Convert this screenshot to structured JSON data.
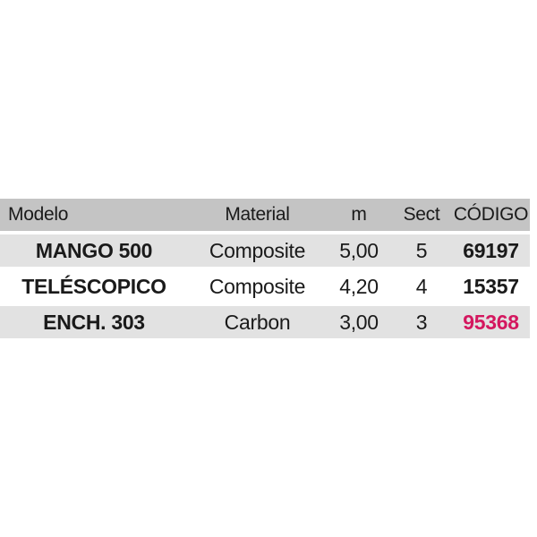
{
  "colors": {
    "header_bg": "#c4c4c4",
    "row_alt_bg": "#e2e2e2",
    "row_bg": "#ffffff",
    "text": "#1a1a1a",
    "highlight": "#d4175f",
    "page_bg": "#ffffff"
  },
  "table": {
    "columns": [
      {
        "key": "modelo",
        "label": "Modelo"
      },
      {
        "key": "material",
        "label": "Material"
      },
      {
        "key": "m",
        "label": "m"
      },
      {
        "key": "sect",
        "label": "Sect"
      },
      {
        "key": "codigo",
        "label": "CÓDIGO"
      }
    ],
    "rows": [
      {
        "modelo": "MANGO 500",
        "material": "Composite",
        "m": "5,00",
        "sect": "5",
        "codigo": "69197",
        "codigo_highlighted": false
      },
      {
        "modelo": "TELÉSCOPICO",
        "material": "Composite",
        "m": "4,20",
        "sect": "4",
        "codigo": "15357",
        "codigo_highlighted": false
      },
      {
        "modelo": "ENCH. 303",
        "material": "Carbon",
        "m": "3,00",
        "sect": "3",
        "codigo": "95368",
        "codigo_highlighted": true
      }
    ]
  }
}
